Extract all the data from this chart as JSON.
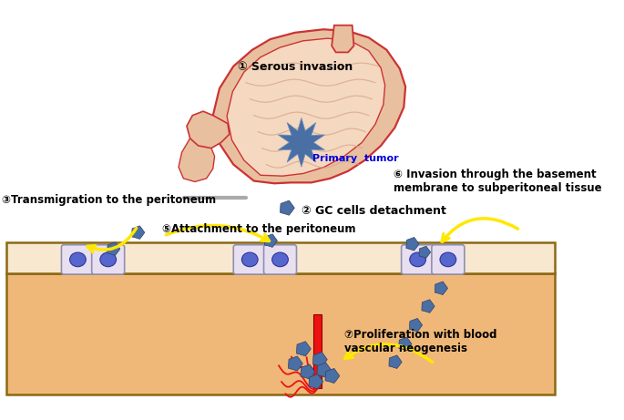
{
  "bg_color": "#ffffff",
  "tissue_color": "#F0B878",
  "tissue_border": "#8B6914",
  "surface_color": "#F8E8D0",
  "tumor_color": "#4A6FA5",
  "tumor_dark": "#2E3F6A",
  "arrow_yellow": "#FFE800",
  "text_color": "#000000",
  "red_vessel": "#EE1111",
  "cell_body": "#E8E0F0",
  "cell_border_color": "#9090B0",
  "cell_nucleus": "#5566CC",
  "stomach_outer": "#E8C0A0",
  "stomach_inner_light": "#F5D8C0",
  "stomach_red": "#CC3333",
  "stomach_fold": "#D4A88A",
  "gray_bar": "#AAAAAA",
  "primary_label_color": "#0000DD",
  "labels": {
    "step1": "① Serous invasion",
    "primary": "Primary  tumor",
    "step2": "② GC cells detachment",
    "step3": "③Transmigration to the peritoneum",
    "step4": "⑤Attachment to the peritoneum",
    "step5": "⑥ Invasion through the basement\nmembrane to subperitoneal tissue",
    "step6": "⑦Proliferation with blood\nvascular neogenesis"
  }
}
